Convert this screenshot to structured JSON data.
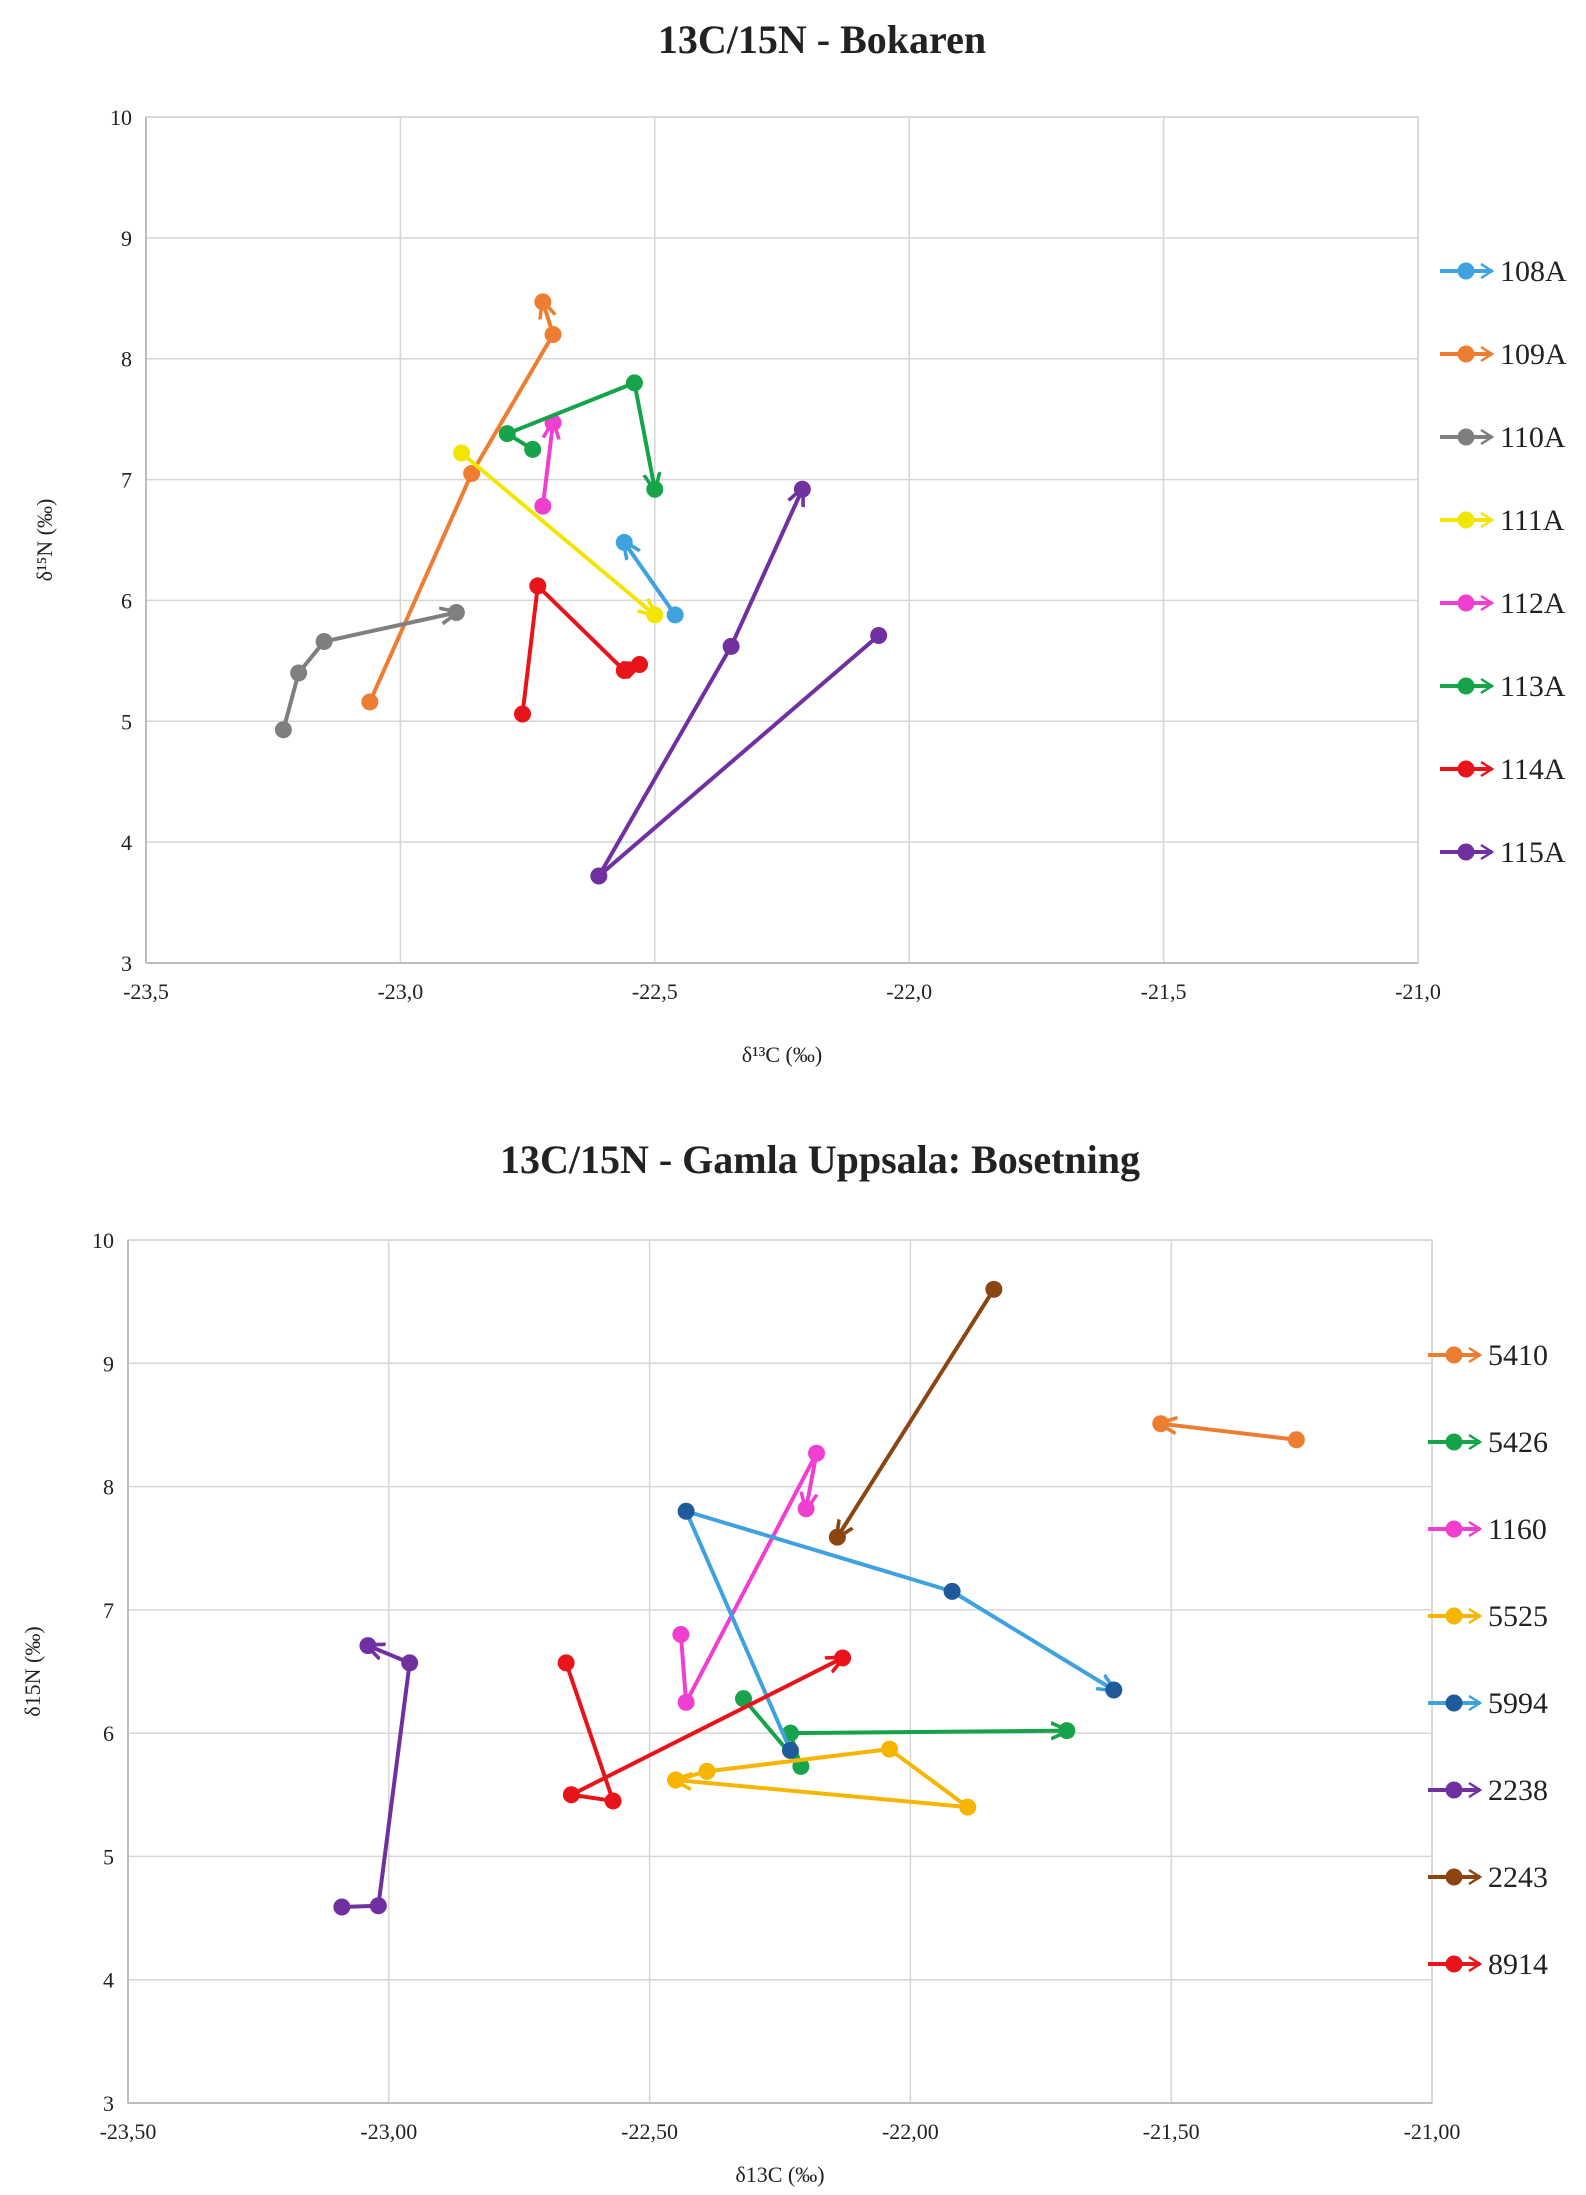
{
  "chart_data": [
    {
      "type": "line",
      "title": "13C/15N - Bokaren",
      "xlabel": "δ¹³C (‰)",
      "ylabel": "δ¹⁵N (‰)",
      "xlim": [
        -23.5,
        -21.0
      ],
      "ylim": [
        3,
        10
      ],
      "xticks": [
        -23.5,
        -23.0,
        -22.5,
        -22.0,
        -21.5,
        -21.0
      ],
      "xtick_labels": [
        "-23,5",
        "-23,0",
        "-22,5",
        "-22,0",
        "-21,5",
        "-21,0"
      ],
      "yticks": [
        3,
        4,
        5,
        6,
        7,
        8,
        9,
        10
      ],
      "ytick_labels": [
        "3",
        "4",
        "5",
        "6",
        "7",
        "8",
        "9",
        "10"
      ],
      "grid": true,
      "legend": "right",
      "series": [
        {
          "name": "108A",
          "color": "#3fa2de",
          "points": [
            [
              -22.46,
              5.88
            ],
            [
              -22.56,
              6.48
            ]
          ]
        },
        {
          "name": "109A",
          "color": "#ed7d31",
          "points": [
            [
              -23.06,
              5.16
            ],
            [
              -22.86,
              7.05
            ],
            [
              -22.7,
              8.2
            ],
            [
              -22.72,
              8.47
            ]
          ]
        },
        {
          "name": "110A",
          "color": "#7f7f7f",
          "points": [
            [
              -23.23,
              4.93
            ],
            [
              -23.2,
              5.4
            ],
            [
              -23.15,
              5.66
            ],
            [
              -22.89,
              5.9
            ]
          ]
        },
        {
          "name": "111A",
          "color": "#f2e600",
          "points": [
            [
              -22.88,
              7.22
            ],
            [
              -22.5,
              5.88
            ]
          ]
        },
        {
          "name": "112A",
          "color": "#f03fd0",
          "points": [
            [
              -22.72,
              6.78
            ],
            [
              -22.7,
              7.47
            ]
          ]
        },
        {
          "name": "113A",
          "color": "#16a34a",
          "points": [
            [
              -22.74,
              7.25
            ],
            [
              -22.79,
              7.38
            ],
            [
              -22.54,
              7.8
            ],
            [
              -22.5,
              6.92
            ]
          ]
        },
        {
          "name": "114A",
          "color": "#e8141a",
          "points": [
            [
              -22.76,
              5.06
            ],
            [
              -22.73,
              6.12
            ],
            [
              -22.56,
              5.42
            ],
            [
              -22.53,
              5.47
            ]
          ]
        },
        {
          "name": "115A",
          "color": "#7030a0",
          "points": [
            [
              -22.06,
              5.71
            ],
            [
              -22.61,
              3.72
            ],
            [
              -22.35,
              5.62
            ],
            [
              -22.21,
              6.92
            ]
          ]
        }
      ]
    },
    {
      "type": "line",
      "title": "13C/15N - Gamla Uppsala: Bosetning",
      "xlabel": "δ13C (‰)",
      "ylabel": "δ15N (‰)",
      "xlim": [
        -23.5,
        -21.0
      ],
      "ylim": [
        3,
        10
      ],
      "xticks": [
        -23.5,
        -23.0,
        -22.5,
        -22.0,
        -21.5,
        -21.0
      ],
      "xtick_labels": [
        "-23,50",
        "-23,00",
        "-22,50",
        "-22,00",
        "-21,50",
        "-21,00"
      ],
      "yticks": [
        3,
        4,
        5,
        6,
        7,
        8,
        9,
        10
      ],
      "ytick_labels": [
        "3",
        "4",
        "5",
        "6",
        "7",
        "8",
        "9",
        "10"
      ],
      "grid": true,
      "legend": "right",
      "series": [
        {
          "name": "5410",
          "color": "#ed7d31",
          "points": [
            [
              -21.26,
              8.38
            ],
            [
              -21.52,
              8.51
            ]
          ]
        },
        {
          "name": "5426",
          "color": "#16a34a",
          "points": [
            [
              -22.32,
              6.28
            ],
            [
              -22.21,
              5.73
            ],
            [
              -22.23,
              6.0
            ],
            [
              -21.7,
              6.02
            ]
          ]
        },
        {
          "name": "1160",
          "color": "#f03fd0",
          "points": [
            [
              -22.44,
              6.8
            ],
            [
              -22.43,
              6.25
            ],
            [
              -22.18,
              8.27
            ],
            [
              -22.2,
              7.82
            ]
          ]
        },
        {
          "name": "5525",
          "color": "#f7b500",
          "points": [
            [
              -22.45,
              5.62
            ],
            [
              -22.39,
              5.69
            ],
            [
              -22.04,
              5.87
            ],
            [
              -21.89,
              5.4
            ],
            [
              -22.45,
              5.62
            ]
          ]
        },
        {
          "name": "5994",
          "color": "#1f5a9c",
          "points": [
            [
              -22.23,
              5.86
            ],
            [
              -22.43,
              7.8
            ],
            [
              -21.92,
              7.15
            ],
            [
              -21.61,
              6.35
            ]
          ],
          "line_color": "#3fa2de"
        },
        {
          "name": "2238",
          "color": "#7030a0",
          "points": [
            [
              -23.09,
              4.59
            ],
            [
              -23.02,
              4.6
            ],
            [
              -22.96,
              6.57
            ],
            [
              -23.04,
              6.71
            ]
          ]
        },
        {
          "name": "2243",
          "color": "#8b4513",
          "points": [
            [
              -21.84,
              9.6
            ],
            [
              -22.14,
              7.59
            ]
          ]
        },
        {
          "name": "8914",
          "color": "#e8141a",
          "points": [
            [
              -22.66,
              6.57
            ],
            [
              -22.57,
              5.45
            ],
            [
              -22.65,
              5.5
            ],
            [
              -22.13,
              6.61
            ]
          ]
        }
      ]
    }
  ]
}
